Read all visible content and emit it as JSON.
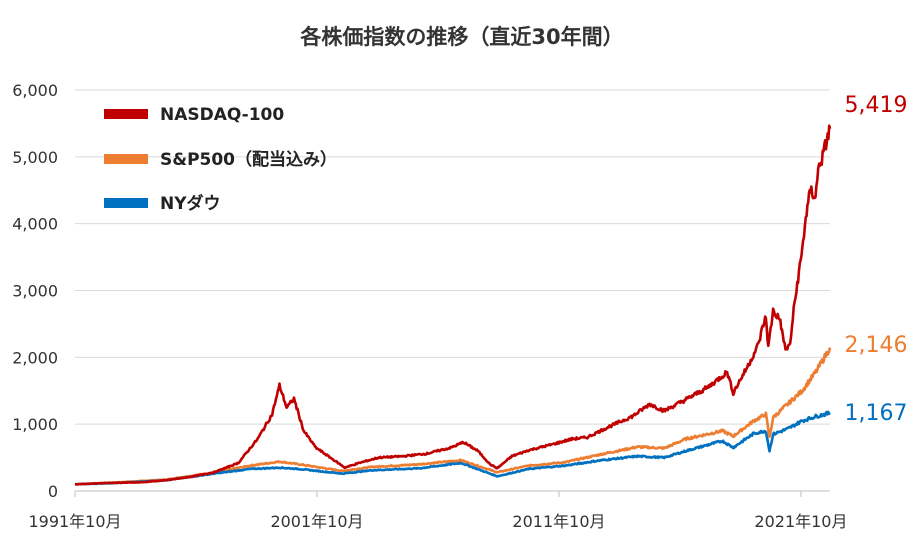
{
  "chart_data": {
    "type": "line",
    "title": "各株価指数の推移（直近30年間）",
    "xlabel": "",
    "ylabel": "",
    "ylim": [
      0,
      6000
    ],
    "yticks": [
      "0",
      "1,000",
      "2,000",
      "3,000",
      "4,000",
      "5,000",
      "6,000"
    ],
    "xticks": [
      "1991年10月",
      "2001年10月",
      "2011年10月",
      "2021年10月"
    ],
    "grid": true,
    "legend_position": "top-left",
    "series": [
      {
        "name": "NASDAQ-100",
        "color": "#c00000",
        "end_label": "5,419",
        "points": [
          [
            1991.75,
            100
          ],
          [
            1993.0,
            120
          ],
          [
            1994.5,
            130
          ],
          [
            1995.5,
            160
          ],
          [
            1996.5,
            210
          ],
          [
            1997.5,
            280
          ],
          [
            1998.5,
            420
          ],
          [
            1999.3,
            780
          ],
          [
            1999.9,
            1150
          ],
          [
            2000.2,
            1580
          ],
          [
            2000.5,
            1250
          ],
          [
            2000.8,
            1380
          ],
          [
            2001.2,
            900
          ],
          [
            2001.7,
            650
          ],
          [
            2002.3,
            500
          ],
          [
            2002.9,
            350
          ],
          [
            2003.5,
            420
          ],
          [
            2004.3,
            500
          ],
          [
            2005.3,
            520
          ],
          [
            2006.3,
            560
          ],
          [
            2007.3,
            650
          ],
          [
            2007.8,
            730
          ],
          [
            2008.4,
            600
          ],
          [
            2008.9,
            400
          ],
          [
            2009.2,
            340
          ],
          [
            2009.8,
            520
          ],
          [
            2010.5,
            610
          ],
          [
            2011.5,
            700
          ],
          [
            2012.3,
            780
          ],
          [
            2012.9,
            800
          ],
          [
            2013.8,
            960
          ],
          [
            2014.8,
            1120
          ],
          [
            2015.5,
            1300
          ],
          [
            2016.1,
            1200
          ],
          [
            2016.9,
            1350
          ],
          [
            2017.9,
            1550
          ],
          [
            2018.7,
            1780
          ],
          [
            2018.95,
            1470
          ],
          [
            2019.6,
            1900
          ],
          [
            2020.0,
            2200
          ],
          [
            2020.2,
            2500
          ],
          [
            2020.3,
            2600
          ],
          [
            2020.4,
            2150
          ],
          [
            2020.6,
            2700
          ],
          [
            2020.9,
            2550
          ],
          [
            2021.0,
            2300
          ],
          [
            2021.15,
            2100
          ],
          [
            2021.3,
            2200
          ],
          [
            2021.45,
            2700
          ],
          [
            2021.6,
            3100
          ],
          [
            2021.8,
            3600
          ],
          [
            2021.95,
            4100
          ],
          [
            2022.15,
            4500
          ],
          [
            2022.35,
            4400
          ],
          [
            2022.5,
            4900
          ],
          [
            2022.65,
            5000
          ],
          [
            2022.85,
            5300
          ],
          [
            2022.95,
            5419
          ]
        ]
      },
      {
        "name": "S&P500（配当込み）",
        "color": "#ed7d31",
        "end_label": "2,146",
        "points": [
          [
            1991.75,
            100
          ],
          [
            1993.5,
            130
          ],
          [
            1995.5,
            170
          ],
          [
            1997.5,
            280
          ],
          [
            1999.0,
            380
          ],
          [
            2000.2,
            440
          ],
          [
            2001.0,
            400
          ],
          [
            2002.8,
            300
          ],
          [
            2004.0,
            360
          ],
          [
            2006.0,
            400
          ],
          [
            2007.7,
            460
          ],
          [
            2009.2,
            280
          ],
          [
            2010.5,
            380
          ],
          [
            2012.0,
            430
          ],
          [
            2013.5,
            550
          ],
          [
            2015.0,
            660
          ],
          [
            2016.1,
            640
          ],
          [
            2017.0,
            780
          ],
          [
            2018.5,
            900
          ],
          [
            2018.95,
            820
          ],
          [
            2019.8,
            1050
          ],
          [
            2020.3,
            1150
          ],
          [
            2020.45,
            800
          ],
          [
            2020.6,
            1100
          ],
          [
            2021.2,
            1300
          ],
          [
            2021.8,
            1500
          ],
          [
            2022.4,
            1800
          ],
          [
            2022.95,
            2146
          ]
        ]
      },
      {
        "name": "NYダウ",
        "color": "#0070c0",
        "end_label": "1,167",
        "points": [
          [
            1991.75,
            100
          ],
          [
            1993.5,
            120
          ],
          [
            1995.5,
            160
          ],
          [
            1997.5,
            260
          ],
          [
            1999.0,
            330
          ],
          [
            2000.2,
            350
          ],
          [
            2001.0,
            330
          ],
          [
            2002.8,
            260
          ],
          [
            2004.0,
            310
          ],
          [
            2006.0,
            340
          ],
          [
            2007.7,
            420
          ],
          [
            2009.2,
            220
          ],
          [
            2010.5,
            330
          ],
          [
            2012.0,
            380
          ],
          [
            2013.5,
            460
          ],
          [
            2015.0,
            520
          ],
          [
            2016.1,
            500
          ],
          [
            2017.0,
            600
          ],
          [
            2018.5,
            750
          ],
          [
            2018.95,
            650
          ],
          [
            2019.8,
            860
          ],
          [
            2020.3,
            900
          ],
          [
            2020.45,
            600
          ],
          [
            2020.6,
            850
          ],
          [
            2021.2,
            930
          ],
          [
            2021.8,
            1050
          ],
          [
            2022.4,
            1120
          ],
          [
            2022.95,
            1167
          ]
        ]
      }
    ]
  }
}
